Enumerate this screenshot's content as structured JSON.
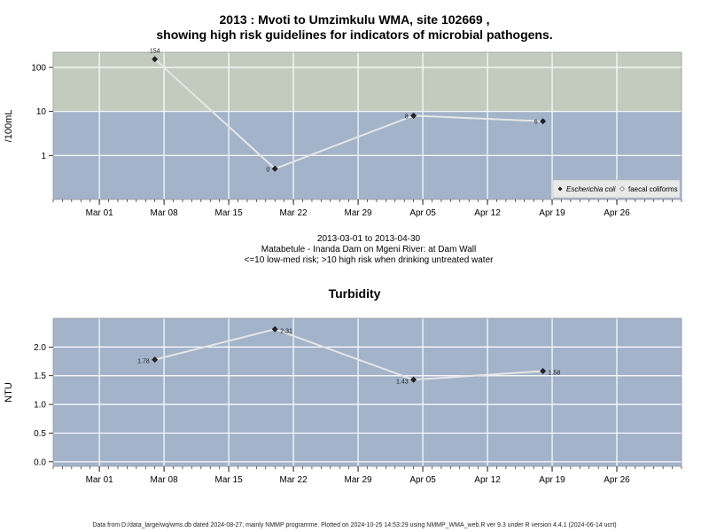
{
  "header": {
    "title_line1": "2013 : Mvoti to Umzimkulu WMA, site 102669 ,",
    "title_line2": "showing high risk guidelines for indicators of microbial pathogens.",
    "subtitle_line1": "2013-03-01 to 2013-04-30",
    "subtitle_line2": "Matabetule - Inanda Dam on Mgeni River: at Dam Wall",
    "subtitle_line3": "<=10 low-med risk; >10 high risk when drinking untreated water"
  },
  "footer": {
    "text": "Data from D:/data_large/wq/wms.db dated 2024-08-27, mainly NMMP programme. Plotted on 2024-10-25 14:53:29 using NMMP_WMA_web.R ver 9.3 under R version 4.4.1 (2024-06-14 ucrt)"
  },
  "colors": {
    "high_risk_band": "#c3cbbf",
    "low_risk_band": "#a3b3ca",
    "gridline": "#ffffff",
    "series_line": "#e6e6e6",
    "marker": "#222222"
  },
  "chart_data": [
    {
      "type": "line",
      "title": "",
      "xlabel": "",
      "ylabel": "/100mL",
      "yscale": "log",
      "ylim": [
        0.1,
        220
      ],
      "xlim": [
        "2013-02-24",
        "2013-05-03"
      ],
      "y_ticks": [
        1,
        10,
        100
      ],
      "y_tick_labels": [
        "1",
        "10",
        "100"
      ],
      "x_ticks": [
        "2013-03-01",
        "2013-03-08",
        "2013-03-15",
        "2013-03-22",
        "2013-03-29",
        "2013-04-05",
        "2013-04-12",
        "2013-04-19",
        "2013-04-26"
      ],
      "x_tick_labels": [
        "Mar 01",
        "Mar 08",
        "Mar 15",
        "Mar 22",
        "Mar 29",
        "Apr 05",
        "Apr 12",
        "Apr 19",
        "Apr 26"
      ],
      "threshold": 10,
      "grid": true,
      "legend_position": "bottom-right",
      "legend": [
        "Escherichia coli",
        "faecal coliforms"
      ],
      "series": [
        {
          "name": "Escherichia coli",
          "x": [
            "2013-03-07",
            "2013-03-20",
            "2013-04-04",
            "2013-04-18"
          ],
          "values": [
            154,
            0.5,
            8,
            6
          ],
          "labels": [
            "154",
            "0",
            "8",
            "6"
          ]
        }
      ]
    },
    {
      "type": "line",
      "title": "Turbidity",
      "xlabel": "",
      "ylabel": "NTU",
      "ylim": [
        -0.08,
        2.5
      ],
      "xlim": [
        "2013-02-24",
        "2013-05-03"
      ],
      "y_ticks": [
        0,
        0.5,
        1,
        1.5,
        2
      ],
      "y_tick_labels": [
        "0.0",
        "0.5",
        "1.0",
        "1.5",
        "2.0"
      ],
      "x_ticks": [
        "2013-03-01",
        "2013-03-08",
        "2013-03-15",
        "2013-03-22",
        "2013-03-29",
        "2013-04-05",
        "2013-04-12",
        "2013-04-19",
        "2013-04-26"
      ],
      "x_tick_labels": [
        "Mar 01",
        "Mar 08",
        "Mar 15",
        "Mar 22",
        "Mar 29",
        "Apr 05",
        "Apr 12",
        "Apr 19",
        "Apr 26"
      ],
      "grid": true,
      "series": [
        {
          "x": [
            "2013-03-07",
            "2013-03-20",
            "2013-04-04",
            "2013-04-18"
          ],
          "values": [
            1.78,
            2.31,
            1.43,
            1.58
          ],
          "labels": [
            "1.78",
            "2.31",
            "1.43",
            "1.58"
          ]
        }
      ]
    }
  ]
}
